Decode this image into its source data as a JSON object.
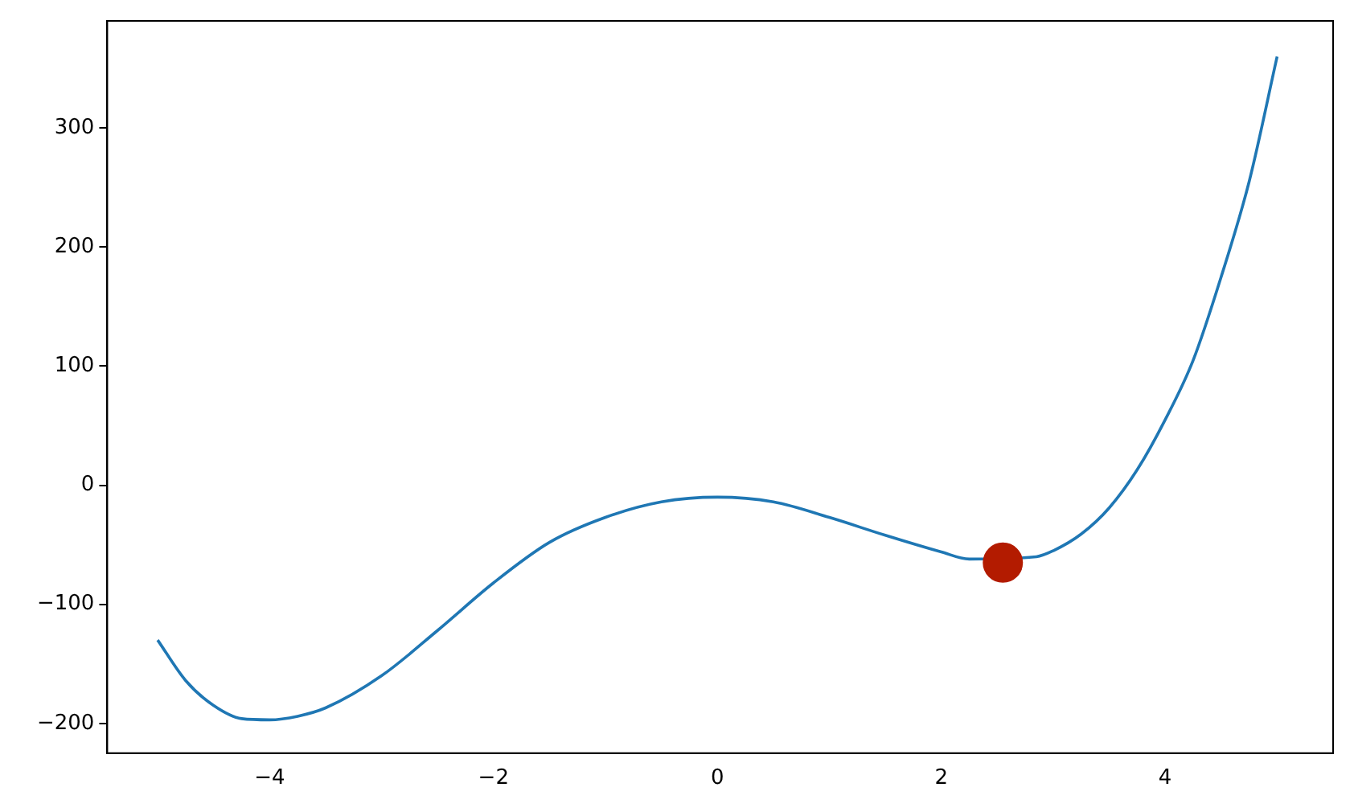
{
  "chart_data": {
    "type": "line",
    "xlim": [
      -5.45,
      5.5
    ],
    "ylim": [
      -225,
      390
    ],
    "xticks": [
      -4,
      -2,
      0,
      2,
      4
    ],
    "yticks": [
      -200,
      -100,
      0,
      100,
      200,
      300
    ],
    "grid": false,
    "series": [
      {
        "type": "line",
        "color": "#1f77b4",
        "marker": "none",
        "x": [
          -5,
          -4.75,
          -4.5,
          -4.25,
          -4,
          -3.75,
          -3.5,
          -3,
          -2.5,
          -2,
          -1.5,
          -1,
          -0.5,
          0,
          0.5,
          1,
          1.5,
          2,
          2.25,
          2.85,
          3,
          3.25,
          3.5,
          3.75,
          4,
          4.25,
          4.5,
          4.75,
          5
        ],
        "values": [
          -130,
          -164,
          -185,
          -196,
          -197,
          -194,
          -187,
          -160,
          -122,
          -82,
          -48,
          -27,
          -14,
          -10,
          -14,
          -27,
          -42,
          -56,
          -62,
          -60,
          -55,
          -41,
          -19,
          13,
          55,
          105,
          175,
          255,
          360
        ]
      },
      {
        "type": "scatter",
        "color": "#b31b00",
        "marker": "circle",
        "x": [
          2.55
        ],
        "values": [
          -65
        ]
      }
    ]
  }
}
